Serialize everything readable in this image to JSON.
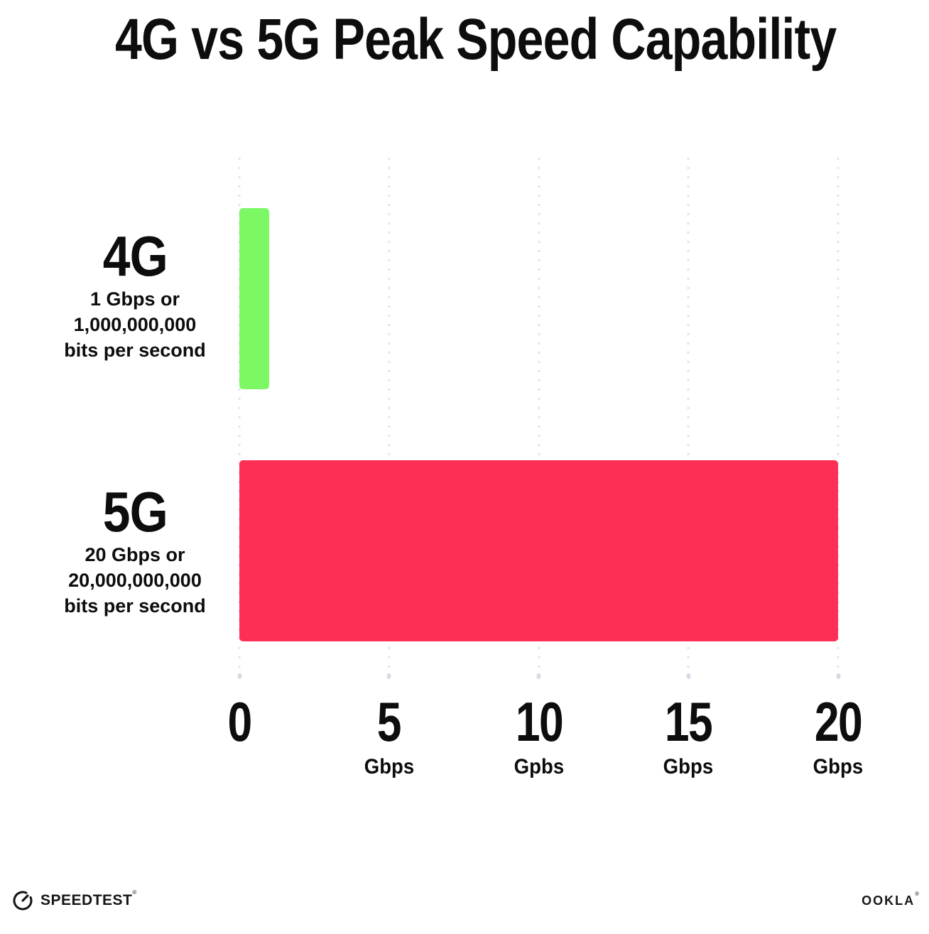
{
  "title": "4G vs 5G Peak Speed Capability",
  "chart_data": {
    "type": "bar",
    "orientation": "horizontal",
    "title": "4G vs 5G Peak Speed Capability",
    "categories": [
      "4G",
      "5G"
    ],
    "values": [
      1,
      20
    ],
    "value_unit": "Gbps",
    "bar_colors": [
      "#7CF864",
      "#FE2E55"
    ],
    "xlim": [
      0,
      20
    ],
    "xtick_values": [
      0,
      5,
      10,
      15,
      20
    ],
    "grid": "vertical dotted gridlines",
    "legend": "none",
    "annotations": [
      "4G: 1 Gbps or 1,000,000,000 bits per second",
      "5G: 20 Gbps or 20,000,000,000 bits per second"
    ]
  },
  "rows": [
    {
      "label": "4G",
      "sub1": "1 Gbps or",
      "sub2": "1,000,000,000",
      "sub3": "bits per second"
    },
    {
      "label": "5G",
      "sub1": "20 Gbps or",
      "sub2": "20,000,000,000",
      "sub3": "bits per second"
    }
  ],
  "x_ticks": [
    {
      "value": "0",
      "unit": ""
    },
    {
      "value": "5",
      "unit": "Gbps"
    },
    {
      "value": "10",
      "unit": "Gpbs"
    },
    {
      "value": "15",
      "unit": "Gbps"
    },
    {
      "value": "20",
      "unit": "Gbps"
    }
  ],
  "footer": {
    "speedtest_label": "SPEEDTEST",
    "speedtest_trademark": "®",
    "ookla_label": "OOKLA",
    "ookla_trademark": "®"
  },
  "colors": {
    "bar_4g": "#7CF864",
    "bar_5g": "#FE2E55",
    "gridline_dot": "#E3E3ED",
    "gridline_end_dot": "#D8D9E5",
    "text": "#0D0D0D",
    "background": "#FFFFFF"
  }
}
